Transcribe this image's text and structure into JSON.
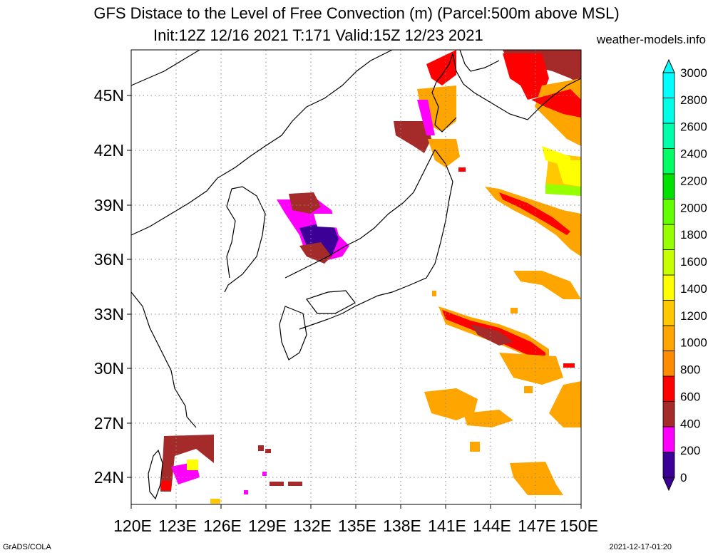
{
  "title": {
    "line1": "GFS Distace to the Level of Free Convection (m) (Parcel:500m above MSL)",
    "line2": "Init:12Z 12/16 2021 T:171 Valid:15Z 12/23 2021",
    "site": "weather-models.info"
  },
  "footer": {
    "left": "GrADS/COLA",
    "right": "2021-12-17-01:20"
  },
  "map": {
    "lat_labels": [
      "45N",
      "42N",
      "39N",
      "36N",
      "33N",
      "30N",
      "27N",
      "24N"
    ],
    "lon_labels": [
      "120E",
      "123E",
      "126E",
      "129E",
      "132E",
      "135E",
      "138E",
      "141E",
      "144E",
      "147E",
      "150E"
    ],
    "lat_range": [
      22.5,
      47.5
    ],
    "lon_range": [
      120,
      150
    ],
    "grid": true,
    "gridline_style": "dotted"
  },
  "colorbar": {
    "labels": [
      "0",
      "200",
      "400",
      "600",
      "800",
      "1000",
      "1200",
      "1400",
      "1600",
      "1800",
      "2000",
      "2200",
      "2400",
      "2600",
      "2800",
      "3000"
    ],
    "colors": [
      "#3c0096",
      "#ff00ff",
      "#a52a2a",
      "#ff0000",
      "#ff8c00",
      "#ffa500",
      "#ffc800",
      "#ffff00",
      "#c8ff00",
      "#96ff00",
      "#64ff00",
      "#00e100",
      "#00ff64",
      "#00ffaa",
      "#00ffe6",
      "#00ffff"
    ]
  },
  "legend_colors": {
    "purple": "#3c0096",
    "magenta": "#ff00ff",
    "brown": "#a52a2a",
    "red": "#ff0000",
    "orange": "#ffa500",
    "gold": "#ffc800",
    "yellow": "#ffff00",
    "lime": "#96ff00"
  }
}
